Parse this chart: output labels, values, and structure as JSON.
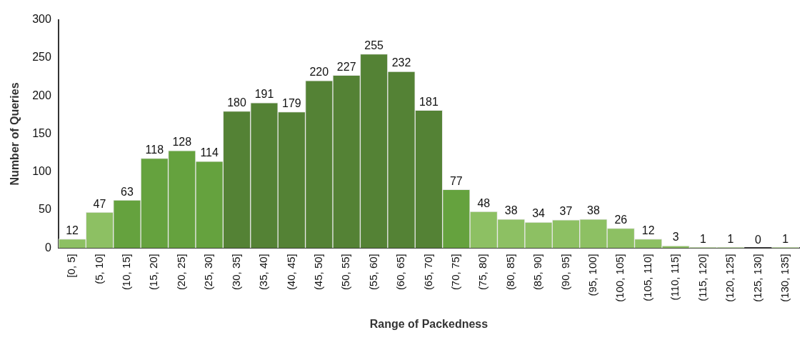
{
  "chart_data": {
    "type": "bar",
    "xlabel": "Range of Packedness",
    "ylabel": "Number of Queries",
    "categories": [
      "[0, 5]",
      "(5, 10]",
      "(10, 15]",
      "(15, 20]",
      "(20, 25]",
      "(25, 30]",
      "(30, 35]",
      "(35, 40]",
      "(40, 45]",
      "(45, 50]",
      "(50, 55]",
      "(55, 60]",
      "(60, 65]",
      "(65, 70]",
      "(70, 75]",
      "(75, 80]",
      "(80, 85]",
      "(85, 90]",
      "(90, 95]",
      "(95, 100]",
      "(100, 105]",
      "(105, 110]",
      "(110, 115]",
      "(115, 120]",
      "(120, 125]",
      "(125, 130]",
      "(130, 135]"
    ],
    "values": [
      12,
      47,
      63,
      118,
      128,
      114,
      180,
      191,
      179,
      220,
      227,
      255,
      232,
      181,
      77,
      48,
      38,
      34,
      37,
      38,
      26,
      12,
      3,
      1,
      1,
      0,
      1
    ],
    "colors": [
      "#8dc063",
      "#8dc063",
      "#65a23e",
      "#65a23e",
      "#65a23e",
      "#65a23e",
      "#548235",
      "#548235",
      "#548235",
      "#548235",
      "#548235",
      "#548235",
      "#548235",
      "#548235",
      "#65a23e",
      "#8dc063",
      "#8dc063",
      "#8dc063",
      "#8dc063",
      "#8dc063",
      "#8dc063",
      "#8dc063",
      "#8dc063",
      "#8dc063",
      "#8dc063",
      "#8dc063",
      "#8dc063"
    ],
    "ylim": [
      0,
      300
    ],
    "yticks": [
      0,
      50,
      100,
      150,
      200,
      250,
      300
    ],
    "grid": false,
    "legend": false,
    "data_labels": true
  }
}
